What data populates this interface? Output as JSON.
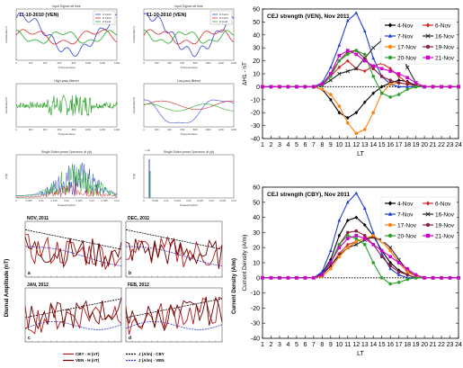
{
  "panels_top": [
    {
      "date_label": "11-10-2010 (VEN)",
      "titles": [
        "Input Signal vet time",
        "High-pass filtered",
        "Single Sided power Spectrum of y(t)"
      ],
      "ylabels": [
        "Amplitude(nT)",
        "Amplitude(nT)",
        "|Y(f)|"
      ],
      "xlabels": [
        "Time(minutes)",
        "Time(minutes)",
        "Frequency(Hz)"
      ],
      "legend": [
        "H Field",
        "D Field",
        "Z Field"
      ],
      "ticks_time": [
        "0",
        "200",
        "400",
        "600",
        "800",
        "1000",
        "1200",
        "1400"
      ],
      "ticks_freq": [
        "0",
        "0.005",
        "0.01",
        "0.015",
        "0.02",
        "0.025",
        "0.03",
        "0.035",
        "0.04"
      ]
    },
    {
      "date_label": "11-10-2010 (VEN)",
      "titles": [
        "Input Signal vet time",
        "Low-pass filtered",
        "Single Sided power Spectrum of y(t)"
      ],
      "ylabels": [
        "Amplitude(nT)",
        "Amplitude(nT)",
        "|Y(f)|"
      ],
      "xlabels": [
        "Time(minutes)",
        "Time(minutes)",
        "Frequency(Hz)"
      ],
      "legend": [
        "H Field",
        "D Field",
        "Z Field"
      ],
      "ticks_time": [
        "0",
        "200",
        "400",
        "600",
        "800",
        "1000",
        "1200",
        "1400"
      ],
      "ticks_freq": [
        "0",
        "0.005",
        "0.01",
        "0.015",
        "0.02",
        "0.025",
        "0.03",
        "0.035",
        "0.04"
      ],
      "exp_label": "x 10"
    }
  ],
  "diurnal": {
    "ylabel_left": "Diurnal Amplitude (nT)",
    "ylabel_right": "Current Density (A/m)",
    "panels": [
      {
        "title": "NOV, 2011",
        "letter": "a"
      },
      {
        "title": "DEC, 2011",
        "letter": "b"
      },
      {
        "title": "JAN, 2012",
        "letter": "c"
      },
      {
        "title": "FEB, 2012",
        "letter": "d"
      }
    ],
    "legend": [
      "CBY - H (nT)",
      "VEN - H (nT)",
      "J (A/m) - CBY",
      "J (A/m) - VEN"
    ]
  },
  "chart_data": [
    {
      "type": "line",
      "title": "CEJ strength (VEN), Nov 2011",
      "xlabel": "LT",
      "ylabel": "ΔH1 - ΔH1 - nT",
      "ylabel_display": "ΔH1 - nT",
      "xlim": [
        1,
        24
      ],
      "ylim": [
        -40,
        60
      ],
      "x": [
        1,
        2,
        3,
        4,
        5,
        6,
        7,
        8,
        9,
        10,
        11,
        12,
        13,
        14,
        15,
        16,
        17,
        18,
        19,
        20,
        21,
        22,
        23,
        24
      ],
      "xticks": [
        "1",
        "2",
        "3",
        "4",
        "5",
        "6",
        "7",
        "8",
        "9",
        "10",
        "11",
        "12",
        "13",
        "14",
        "15",
        "16",
        "17",
        "18",
        "19",
        "20",
        "21",
        "22",
        "23",
        "24"
      ],
      "yticks": [
        "-40",
        "-30",
        "-20",
        "-10",
        "0",
        "10",
        "20",
        "30",
        "40",
        "50",
        "60"
      ],
      "legend_placement": "top-right",
      "series": [
        {
          "name": "4-Nov",
          "color": "#000000",
          "marker": "diamond",
          "values": [
            0,
            0,
            0,
            0,
            0,
            0,
            0,
            -2,
            -10,
            -20,
            -24,
            -20,
            -12,
            -5,
            0,
            3,
            5,
            4,
            1,
            0,
            0,
            0,
            0,
            0
          ]
        },
        {
          "name": "6-Nov",
          "color": "#d62728",
          "marker": "diamond",
          "values": [
            0,
            0,
            0,
            0,
            0,
            0,
            0,
            2,
            8,
            15,
            20,
            14,
            12,
            16,
            18,
            14,
            8,
            3,
            0,
            0,
            0,
            0,
            0,
            0
          ]
        },
        {
          "name": "7-Nov",
          "color": "#1f3fd0",
          "marker": "triangle",
          "values": [
            0,
            0,
            0,
            0,
            0,
            0,
            0,
            3,
            15,
            32,
            51,
            57,
            43,
            22,
            8,
            2,
            0,
            0,
            0,
            0,
            0,
            0,
            0,
            0
          ]
        },
        {
          "name": "16-Nov",
          "color": "#222222",
          "marker": "cross",
          "values": [
            0,
            0,
            0,
            0,
            0,
            0,
            0,
            1,
            5,
            10,
            12,
            14,
            22,
            30,
            36,
            38,
            30,
            15,
            3,
            0,
            0,
            0,
            0,
            0
          ]
        },
        {
          "name": "17-Nov",
          "color": "#ff7f0e",
          "marker": "circle",
          "values": [
            0,
            0,
            0,
            0,
            0,
            0,
            0,
            -2,
            -6,
            -15,
            -28,
            -36,
            -33,
            -20,
            -5,
            2,
            3,
            2,
            1,
            0,
            0,
            0,
            0,
            0
          ]
        },
        {
          "name": "19-Nov",
          "color": "#8c1f3c",
          "marker": "circle",
          "values": [
            0,
            0,
            0,
            0,
            0,
            0,
            0,
            2,
            10,
            20,
            27,
            28,
            22,
            14,
            8,
            5,
            3,
            2,
            1,
            0,
            0,
            0,
            0,
            0
          ]
        },
        {
          "name": "20-Nov",
          "color": "#2ca02c",
          "marker": "circle",
          "values": [
            0,
            0,
            0,
            0,
            0,
            0,
            0,
            1,
            8,
            20,
            25,
            28,
            25,
            8,
            -5,
            -8,
            -6,
            -2,
            0,
            0,
            0,
            0,
            0,
            0
          ]
        },
        {
          "name": "21-Nov",
          "color": "#d000d0",
          "marker": "square",
          "values": [
            0,
            0,
            0,
            0,
            0,
            0,
            0,
            2,
            10,
            24,
            28,
            25,
            20,
            16,
            14,
            12,
            10,
            7,
            3,
            0,
            0,
            0,
            0,
            0
          ]
        }
      ]
    },
    {
      "type": "line",
      "title": "CEJ strength (CBY), Nov 2011",
      "xlabel": "LT",
      "ylabel": "Current Density (A/m)",
      "xlim": [
        1,
        24
      ],
      "ylim": [
        -40,
        60
      ],
      "x": [
        1,
        2,
        3,
        4,
        5,
        6,
        7,
        8,
        9,
        10,
        11,
        12,
        13,
        14,
        15,
        16,
        17,
        18,
        19,
        20,
        21,
        22,
        23,
        24
      ],
      "xticks": [
        "1",
        "2",
        "3",
        "4",
        "5",
        "6",
        "7",
        "8",
        "9",
        "10",
        "11",
        "12",
        "13",
        "14",
        "15",
        "16",
        "17",
        "18",
        "19",
        "20",
        "21",
        "22",
        "23",
        "24"
      ],
      "yticks": [
        "-40",
        "-30",
        "-20",
        "-10",
        "0",
        "10",
        "20",
        "30",
        "40",
        "50",
        "60"
      ],
      "legend_placement": "top-right",
      "series": [
        {
          "name": "4-Nov",
          "color": "#000000",
          "marker": "diamond",
          "values": [
            0,
            0,
            0,
            0,
            0,
            0,
            0,
            3,
            12,
            28,
            38,
            40,
            35,
            28,
            18,
            10,
            5,
            2,
            0,
            0,
            0,
            0,
            0,
            0
          ]
        },
        {
          "name": "6-Nov",
          "color": "#d62728",
          "marker": "diamond",
          "values": [
            0,
            0,
            0,
            0,
            0,
            0,
            0,
            2,
            8,
            16,
            22,
            24,
            26,
            27,
            24,
            18,
            10,
            4,
            1,
            0,
            0,
            0,
            0,
            0
          ]
        },
        {
          "name": "7-Nov",
          "color": "#1f3fd0",
          "marker": "triangle",
          "values": [
            0,
            0,
            0,
            0,
            0,
            0,
            0,
            4,
            18,
            38,
            50,
            56,
            46,
            30,
            16,
            6,
            2,
            0,
            0,
            0,
            0,
            0,
            0,
            0
          ]
        },
        {
          "name": "16-Nov",
          "color": "#222222",
          "marker": "cross",
          "values": [
            0,
            0,
            0,
            0,
            0,
            0,
            0,
            2,
            8,
            15,
            20,
            22,
            25,
            27,
            25,
            20,
            12,
            5,
            1,
            0,
            0,
            0,
            0,
            0
          ]
        },
        {
          "name": "17-Nov",
          "color": "#ff7f0e",
          "marker": "circle",
          "values": [
            0,
            0,
            0,
            0,
            0,
            0,
            0,
            1,
            6,
            14,
            20,
            24,
            26,
            28,
            24,
            18,
            10,
            4,
            1,
            0,
            0,
            0,
            0,
            0
          ]
        },
        {
          "name": "19-Nov",
          "color": "#8c1f3c",
          "marker": "circle",
          "values": [
            0,
            0,
            0,
            0,
            0,
            0,
            0,
            2,
            10,
            22,
            30,
            31,
            28,
            22,
            14,
            8,
            4,
            2,
            0,
            0,
            0,
            0,
            0,
            0
          ]
        },
        {
          "name": "20-Nov",
          "color": "#2ca02c",
          "marker": "circle",
          "values": [
            0,
            0,
            0,
            0,
            0,
            0,
            0,
            2,
            10,
            22,
            28,
            26,
            22,
            10,
            0,
            -4,
            -3,
            -1,
            0,
            0,
            0,
            0,
            0,
            0
          ]
        },
        {
          "name": "21-Nov",
          "color": "#d000d0",
          "marker": "square",
          "values": [
            0,
            0,
            0,
            0,
            0,
            0,
            0,
            2,
            10,
            20,
            26,
            28,
            26,
            22,
            18,
            14,
            10,
            6,
            2,
            0,
            0,
            0,
            0,
            0
          ]
        }
      ]
    }
  ]
}
